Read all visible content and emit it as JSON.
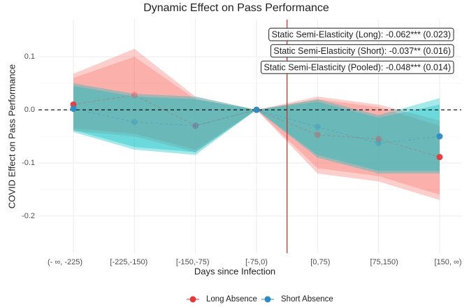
{
  "chart_data": {
    "type": "event_study",
    "title": "Dynamic Effect on Pass Performance",
    "x_label": "Days since Infection",
    "y_label": "COVID Effect on Pass Performance",
    "categories": [
      "(- ∞, -225)",
      "[-225,-150)",
      "[-150,-75)",
      "[-75,0)",
      "[0,75)",
      "[75,150)",
      "[150, ∞)"
    ],
    "ylim": [
      -0.27,
      0.17
    ],
    "yticks": [
      -0.2,
      -0.1,
      {
        "value": 0,
        "label": "0.0"
      },
      0.1
    ],
    "grid": true,
    "hline": 0,
    "vline": {
      "position": 3.5,
      "color": "#e41a1c"
    },
    "series": [
      {
        "name": "Long Absence",
        "color": "#e4393b",
        "band_color": "#f8766d",
        "values": [
          0.01,
          0.028,
          -0.03,
          0,
          -0.047,
          -0.055,
          -0.089
        ],
        "upper": [
          0.068,
          0.115,
          0.025,
          0,
          0.025,
          0.01,
          -0.02
        ],
        "lower": [
          -0.04,
          -0.05,
          -0.08,
          0,
          -0.12,
          -0.135,
          -0.17
        ],
        "upper_inner": [
          0.06,
          0.1,
          0.02,
          0,
          0.02,
          0.005,
          -0.03
        ],
        "lower_inner": [
          -0.035,
          -0.045,
          -0.075,
          0,
          -0.11,
          -0.125,
          -0.16
        ]
      },
      {
        "name": "Short Absence",
        "color": "#2b8cc4",
        "band_color": "#00bfc4",
        "values": [
          0.002,
          -0.023,
          -0.03,
          0,
          -0.032,
          -0.063,
          -0.05
        ],
        "upper": [
          0.05,
          0.03,
          0.025,
          0,
          0.02,
          -0.01,
          0.022
        ],
        "lower": [
          -0.042,
          -0.075,
          -0.085,
          0,
          -0.09,
          -0.12,
          -0.12
        ],
        "upper_inner": [
          0.045,
          0.025,
          0.02,
          0,
          0.015,
          -0.015,
          0.01
        ],
        "lower_inner": [
          -0.038,
          -0.07,
          -0.08,
          0,
          -0.085,
          -0.115,
          -0.115
        ]
      }
    ],
    "annotations": [
      "Static Semi-Elasticity (Long): -0.062*** (0.023)",
      "Static Semi-Elasticity (Short): -0.037** (0.016)",
      "Static Semi-Elasticity (Pooled): -0.048*** (0.014)"
    ]
  }
}
